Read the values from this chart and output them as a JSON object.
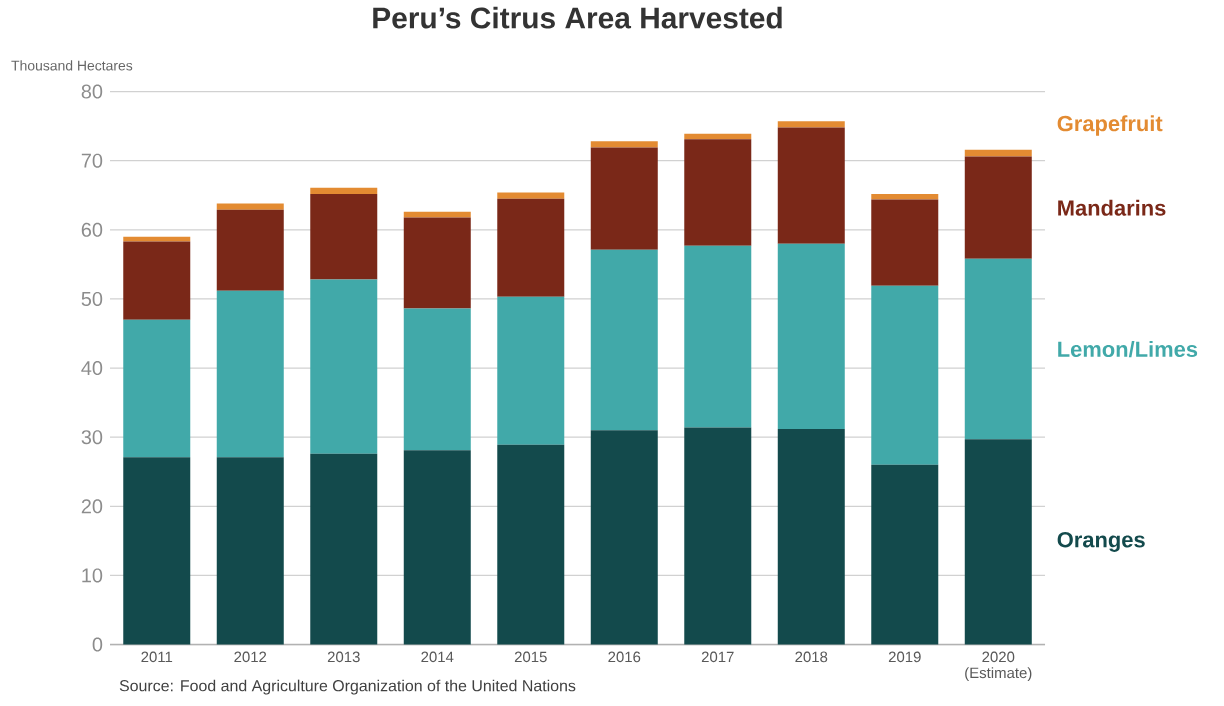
{
  "chart_data": {
    "type": "bar",
    "stacked": true,
    "title": "Peru’s Citrus Area Harvested",
    "ylabel": "Thousand Hectares",
    "categories": [
      "2011",
      "2012",
      "2013",
      "2014",
      "2015",
      "2016",
      "2017",
      "2018",
      "2019",
      "2020 (Estimate)"
    ],
    "series": [
      {
        "name": "Oranges",
        "color": "#134a4c",
        "values": [
          27.1,
          27.1,
          27.6,
          28.1,
          28.9,
          31.0,
          31.4,
          31.2,
          26.0,
          29.7
        ]
      },
      {
        "name": "Lemon/Limes",
        "color": "#41a9a9",
        "values": [
          19.9,
          24.1,
          25.2,
          20.5,
          21.4,
          26.1,
          26.3,
          26.8,
          25.9,
          26.1
        ]
      },
      {
        "name": "Mandarins",
        "color": "#7a2818",
        "values": [
          11.3,
          11.7,
          12.4,
          13.2,
          14.2,
          14.8,
          15.4,
          16.8,
          12.5,
          14.8
        ]
      },
      {
        "name": "Grapefruit",
        "color": "#e38b32",
        "values": [
          0.7,
          0.9,
          0.9,
          0.8,
          0.9,
          0.9,
          0.8,
          0.9,
          0.8,
          1.0
        ]
      }
    ],
    "ylim": [
      0,
      80
    ],
    "yticks": [
      0,
      10,
      20,
      30,
      40,
      50,
      60,
      70,
      80
    ],
    "grid": "y",
    "legend": "right",
    "annotations": [
      "Source: Food and Agriculture Organization of the United Nations"
    ]
  }
}
